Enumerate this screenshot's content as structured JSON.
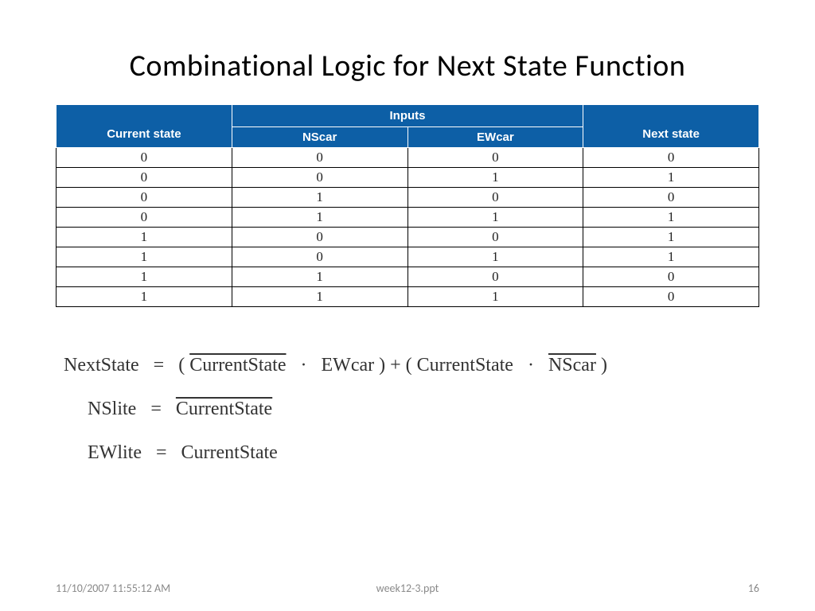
{
  "title": "Combinational Logic for Next State Function",
  "table": {
    "header_bg": "#0d5fa6",
    "header_fg": "#ffffff",
    "border_color": "#000000",
    "cell_font": "Georgia, serif",
    "columns": {
      "current_state": "Current state",
      "inputs_group": "Inputs",
      "nscar": "NScar",
      "ewcar": "EWcar",
      "next_state": "Next state"
    },
    "rows": [
      [
        "0",
        "0",
        "0",
        "0"
      ],
      [
        "0",
        "0",
        "1",
        "1"
      ],
      [
        "0",
        "1",
        "0",
        "0"
      ],
      [
        "0",
        "1",
        "1",
        "1"
      ],
      [
        "1",
        "0",
        "0",
        "1"
      ],
      [
        "1",
        "0",
        "1",
        "1"
      ],
      [
        "1",
        "1",
        "0",
        "0"
      ],
      [
        "1",
        "1",
        "1",
        "0"
      ]
    ]
  },
  "formulas": {
    "f1_lhs": "NextState",
    "f1_eq": "=",
    "f1_open": "(",
    "f1_cs_bar": "CurrentState",
    "f1_dot1": "·",
    "f1_ewcar": "EWcar",
    "f1_close_plus_open": ") + (",
    "f1_cs": "CurrentState",
    "f1_dot2": "·",
    "f1_nscar_bar": "NScar",
    "f1_end": ")",
    "f2_lhs": "NSlite",
    "f2_eq": "=",
    "f2_rhs": "CurrentState",
    "f3_lhs": "EWlite",
    "f3_eq": "=",
    "f3_rhs": "CurrentState"
  },
  "footer": {
    "date": "11/10/2007 11:55:12 AM",
    "file": "week12-3.ppt",
    "page": "16"
  }
}
